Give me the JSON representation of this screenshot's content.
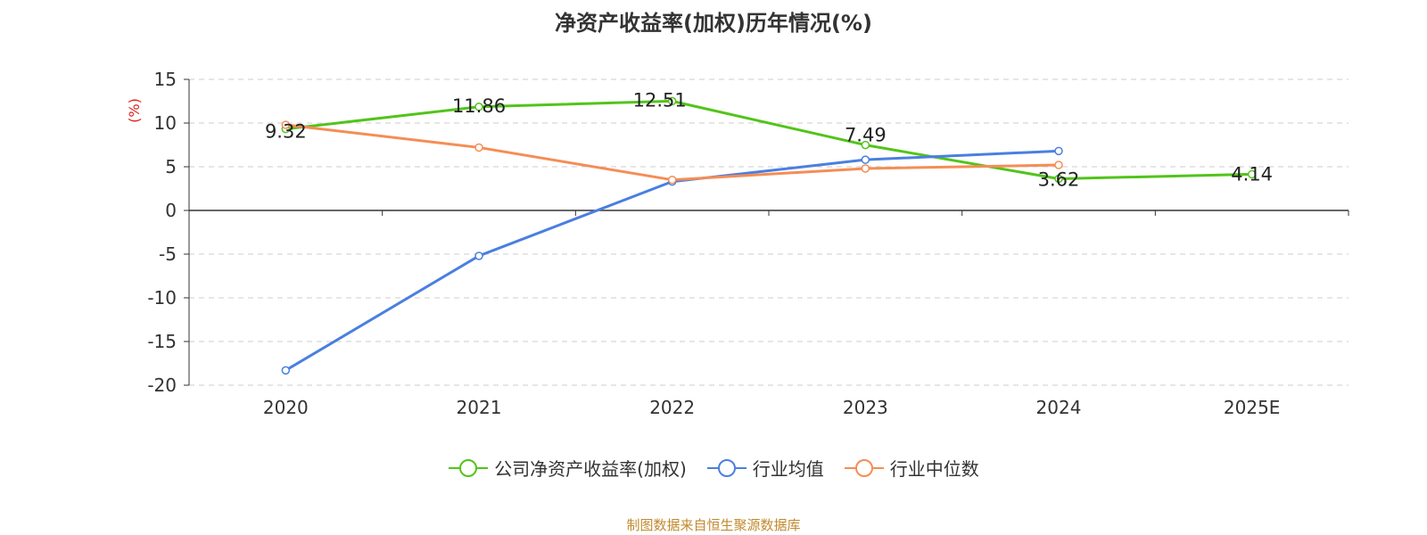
{
  "chart_data": {
    "type": "line",
    "title": "净资产收益率(加权)历年情况(%)",
    "ylabel": "(%)",
    "categories": [
      "2020",
      "2021",
      "2022",
      "2023",
      "2024",
      "2025E"
    ],
    "ylim": [
      -20,
      15
    ],
    "yticks": [
      15,
      10,
      5,
      0,
      -5,
      -10,
      -15,
      -20
    ],
    "grid": true,
    "legend_position": "bottom",
    "series": [
      {
        "name": "公司净资产收益率(加权)",
        "color": "#52c41a",
        "values": [
          9.32,
          11.86,
          12.51,
          7.49,
          3.62,
          4.14
        ],
        "labels": [
          "9.32",
          "11.86",
          "12.51",
          "7.49",
          "3.62",
          "4.14"
        ]
      },
      {
        "name": "行业均值",
        "color": "#4a7fe0",
        "values": [
          -18.3,
          -5.2,
          3.3,
          5.8,
          6.8,
          null
        ]
      },
      {
        "name": "行业中位数",
        "color": "#f58d55",
        "values": [
          9.8,
          7.2,
          3.5,
          4.8,
          5.2,
          null
        ]
      }
    ]
  },
  "source_text": "制图数据来自恒生聚源数据库"
}
